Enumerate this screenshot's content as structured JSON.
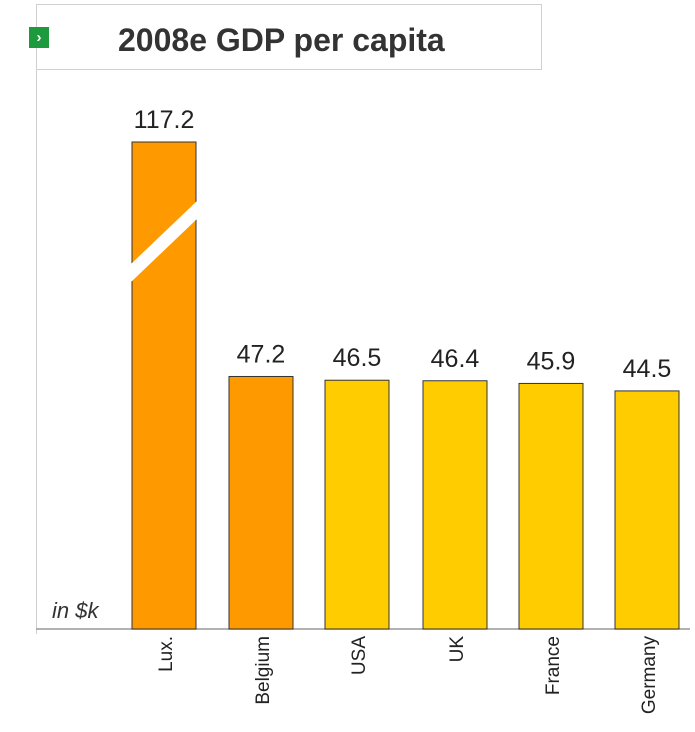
{
  "header": {
    "marker_glyph": "›",
    "title": "2008e GDP per capita"
  },
  "units_label": "in $k",
  "colors": {
    "highlight": "#FF9900",
    "normal": "#FFCC00",
    "border": "#333333",
    "axis": "#999999",
    "marker": "#1D9A3E"
  },
  "chart_data": {
    "type": "bar",
    "title": "2008e GDP per capita",
    "unit": "in $k",
    "categories": [
      "Lux.",
      "Belgium",
      "USA",
      "UK",
      "France",
      "Germany"
    ],
    "values": [
      117.2,
      47.2,
      46.5,
      46.4,
      45.9,
      44.5
    ],
    "value_labels": [
      "117.2",
      "47.2",
      "46.5",
      "46.4",
      "45.9",
      "44.5"
    ],
    "highlight": [
      true,
      true,
      false,
      false,
      false,
      false
    ],
    "axis_break": {
      "category": "Lux."
    },
    "grid": false,
    "legend": "none"
  }
}
